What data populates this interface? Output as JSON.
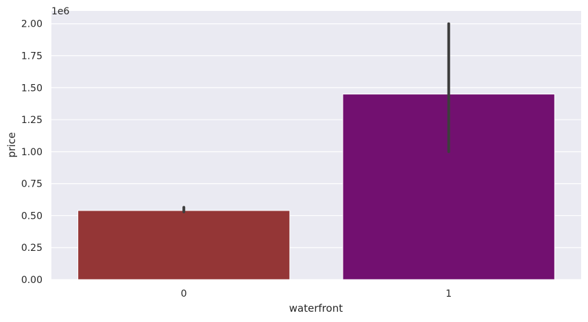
{
  "chart_data": {
    "type": "bar",
    "xlabel": "waterfront",
    "ylabel": "price",
    "y_offset_label": "1e6",
    "categories": [
      "0",
      "1"
    ],
    "values": [
      0.54,
      1.45
    ],
    "error_bars": [
      [
        0.53,
        0.565
      ],
      [
        1.0,
        2.0
      ]
    ],
    "ylim": [
      0,
      2.1
    ],
    "yticks": [
      0,
      0.25,
      0.5,
      0.75,
      1.0,
      1.25,
      1.5,
      1.75,
      2.0
    ],
    "ytick_labels": [
      "0.00",
      "0.25",
      "0.50",
      "0.75",
      "1.00",
      "1.25",
      "1.50",
      "1.75",
      "2.00"
    ],
    "bar_colors": [
      "#943636",
      "#721070"
    ],
    "errorbar_color": "#3d3d3d",
    "background_color": "#eaeaf2",
    "grid": true,
    "grid_color": "#ffffff"
  }
}
